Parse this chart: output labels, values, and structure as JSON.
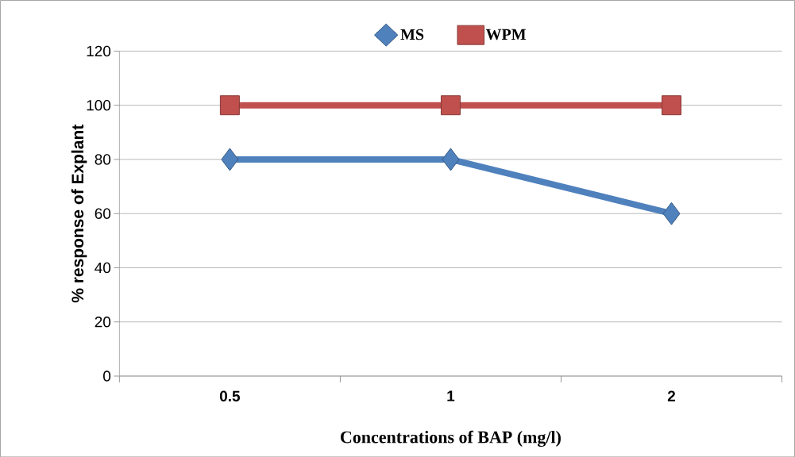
{
  "chart_data": {
    "type": "line",
    "xlabel": "Concentrations of BAP (mg/l)",
    "ylabel": "% response of Explant",
    "categories": [
      "0.5",
      "1",
      "2"
    ],
    "series": [
      {
        "name": "MS",
        "color": "#4f81bd",
        "values": [
          80,
          80,
          60
        ],
        "marker": "diamond"
      },
      {
        "name": "WPM",
        "color": "#c0504d",
        "values": [
          100,
          100,
          100
        ],
        "marker": "square"
      }
    ],
    "ylim": [
      0,
      120
    ],
    "yticks": [
      0,
      20,
      40,
      60,
      80,
      100,
      120
    ],
    "grid": "y",
    "legend": "top"
  }
}
